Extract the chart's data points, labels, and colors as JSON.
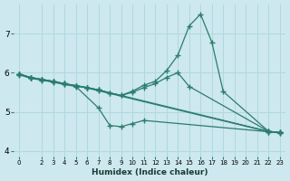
{
  "xlabel": "Humidex (Indice chaleur)",
  "bg_color": "#cde8ee",
  "grid_color": "#b0d8e0",
  "line_color": "#2a7d6e",
  "lines": [
    {
      "x": [
        0,
        1,
        2,
        3,
        4,
        5,
        6,
        7,
        8,
        9,
        10,
        11,
        12,
        13,
        14,
        15,
        16,
        17,
        18,
        22,
        23
      ],
      "y": [
        5.97,
        5.88,
        5.83,
        5.78,
        5.72,
        5.67,
        5.62,
        5.56,
        5.48,
        5.42,
        5.53,
        5.68,
        5.78,
        6.05,
        6.45,
        7.2,
        7.5,
        6.78,
        5.52,
        4.5,
        4.47
      ]
    },
    {
      "x": [
        0,
        1,
        2,
        3,
        4,
        5,
        6,
        7,
        8,
        9,
        10,
        11,
        12,
        13,
        14,
        15,
        22,
        23
      ],
      "y": [
        5.97,
        5.88,
        5.83,
        5.78,
        5.72,
        5.67,
        5.62,
        5.56,
        5.48,
        5.42,
        5.5,
        5.62,
        5.72,
        5.88,
        6.0,
        5.65,
        4.5,
        4.47
      ]
    },
    {
      "x": [
        0,
        1,
        2,
        3,
        4,
        5,
        6,
        7,
        22,
        23
      ],
      "y": [
        5.97,
        5.88,
        5.83,
        5.78,
        5.72,
        5.67,
        5.62,
        5.56,
        4.5,
        4.47
      ]
    },
    {
      "x": [
        0,
        1,
        2,
        3,
        4,
        5,
        6,
        7,
        22,
        23
      ],
      "y": [
        5.96,
        5.87,
        5.82,
        5.77,
        5.71,
        5.66,
        5.61,
        5.54,
        4.49,
        4.46
      ]
    },
    {
      "x": [
        0,
        1,
        2,
        3,
        4,
        5,
        7,
        8,
        9,
        10,
        11,
        22,
        23
      ],
      "y": [
        5.95,
        5.86,
        5.81,
        5.76,
        5.7,
        5.65,
        5.1,
        4.65,
        4.62,
        4.7,
        4.78,
        4.49,
        4.46
      ]
    }
  ],
  "xlim": [
    -0.5,
    23.5
  ],
  "ylim": [
    3.85,
    7.75
  ],
  "yticks": [
    4,
    5,
    6,
    7
  ],
  "xticks": [
    0,
    2,
    3,
    4,
    5,
    6,
    7,
    8,
    9,
    10,
    11,
    12,
    13,
    14,
    15,
    16,
    17,
    18,
    19,
    20,
    21,
    22,
    23
  ],
  "marker": "+",
  "marker_size": 4,
  "linewidth": 0.9
}
